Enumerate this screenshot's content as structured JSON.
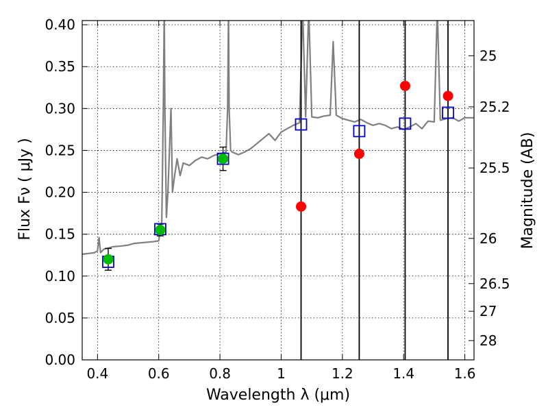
{
  "chart_data": {
    "type": "line",
    "title": "",
    "xlabel": "Wavelength  λ (μm)",
    "ylabel": "Flux  Fν  ( μJy )",
    "y2label": "Magnitude (AB)",
    "xlim": [
      0.35,
      1.63
    ],
    "ylim": [
      0.0,
      0.405
    ],
    "grid": true,
    "x_ticks": [
      0.4,
      0.6,
      0.8,
      1.0,
      1.2,
      1.4,
      1.6
    ],
    "x_tick_labels": [
      "0.4",
      "0.6",
      "0.8",
      "1",
      "1.2",
      "1.4",
      "1.6"
    ],
    "y_ticks": [
      0.0,
      0.05,
      0.1,
      0.15,
      0.2,
      0.25,
      0.3,
      0.35,
      0.4
    ],
    "y_tick_labels": [
      "0.00",
      "0.05",
      "0.10",
      "0.15",
      "0.20",
      "0.25",
      "0.30",
      "0.35",
      "0.40"
    ],
    "y2_ticks": [
      {
        "label": "25",
        "flux": 0.363
      },
      {
        "label": "25.2",
        "flux": 0.302
      },
      {
        "label": "25.5",
        "flux": 0.229
      },
      {
        "label": "26",
        "flux": 0.145
      },
      {
        "label": "26.5",
        "flux": 0.091
      },
      {
        "label": "27",
        "flux": 0.058
      },
      {
        "label": "28",
        "flux": 0.023
      }
    ],
    "colors": {
      "spectrum": "#7f7f7f",
      "model_points": "#0000cc",
      "observed_optical": "#00bb00",
      "observed_nir": "#ff0000",
      "vertical_lines": "#000000"
    },
    "spectrum": {
      "x": [
        0.35,
        0.37,
        0.39,
        0.4,
        0.405,
        0.41,
        0.42,
        0.45,
        0.48,
        0.5,
        0.52,
        0.55,
        0.58,
        0.6,
        0.61,
        0.615,
        0.618,
        0.62,
        0.625,
        0.63,
        0.64,
        0.645,
        0.65,
        0.66,
        0.67,
        0.68,
        0.7,
        0.72,
        0.74,
        0.76,
        0.78,
        0.8,
        0.82,
        0.825,
        0.828,
        0.83,
        0.835,
        0.84,
        0.86,
        0.88,
        0.9,
        0.92,
        0.94,
        0.96,
        0.98,
        1.0,
        1.02,
        1.04,
        1.06,
        1.07,
        1.08,
        1.09,
        1.1,
        1.12,
        1.14,
        1.16,
        1.17,
        1.18,
        1.19,
        1.2,
        1.22,
        1.24,
        1.26,
        1.28,
        1.3,
        1.32,
        1.34,
        1.36,
        1.38,
        1.4,
        1.42,
        1.44,
        1.46,
        1.48,
        1.5,
        1.51,
        1.52,
        1.54,
        1.56,
        1.58,
        1.6,
        1.63
      ],
      "y": [
        0.126,
        0.127,
        0.128,
        0.13,
        0.146,
        0.128,
        0.132,
        0.135,
        0.136,
        0.137,
        0.139,
        0.14,
        0.141,
        0.142,
        0.165,
        0.3,
        0.42,
        0.3,
        0.17,
        0.2,
        0.3,
        0.2,
        0.215,
        0.24,
        0.22,
        0.235,
        0.232,
        0.238,
        0.242,
        0.24,
        0.244,
        0.246,
        0.248,
        0.3,
        0.42,
        0.3,
        0.25,
        0.248,
        0.245,
        0.248,
        0.252,
        0.258,
        0.264,
        0.27,
        0.262,
        0.272,
        0.276,
        0.28,
        0.283,
        0.42,
        0.29,
        0.42,
        0.29,
        0.289,
        0.291,
        0.292,
        0.38,
        0.292,
        0.29,
        0.288,
        0.286,
        0.284,
        0.287,
        0.283,
        0.28,
        0.282,
        0.28,
        0.276,
        0.278,
        0.275,
        0.278,
        0.282,
        0.276,
        0.285,
        0.284,
        0.42,
        0.286,
        0.288,
        0.289,
        0.285,
        0.289,
        0.289
      ]
    },
    "model_points": {
      "x": [
        0.435,
        0.605,
        0.81,
        1.065,
        1.255,
        1.405,
        1.545
      ],
      "y": [
        0.117,
        0.156,
        0.24,
        0.281,
        0.273,
        0.282,
        0.295
      ]
    },
    "observed_optical": {
      "x": [
        0.435,
        0.605,
        0.81
      ],
      "y": [
        0.12,
        0.155,
        0.24
      ],
      "err": [
        0.013,
        0.007,
        0.014
      ]
    },
    "observed_nir": {
      "x": [
        1.065,
        1.255,
        1.405,
        1.545
      ],
      "y": [
        0.183,
        0.246,
        0.327,
        0.315
      ]
    },
    "vertical_lines": [
      1.065,
      1.255,
      1.405,
      1.545
    ]
  }
}
